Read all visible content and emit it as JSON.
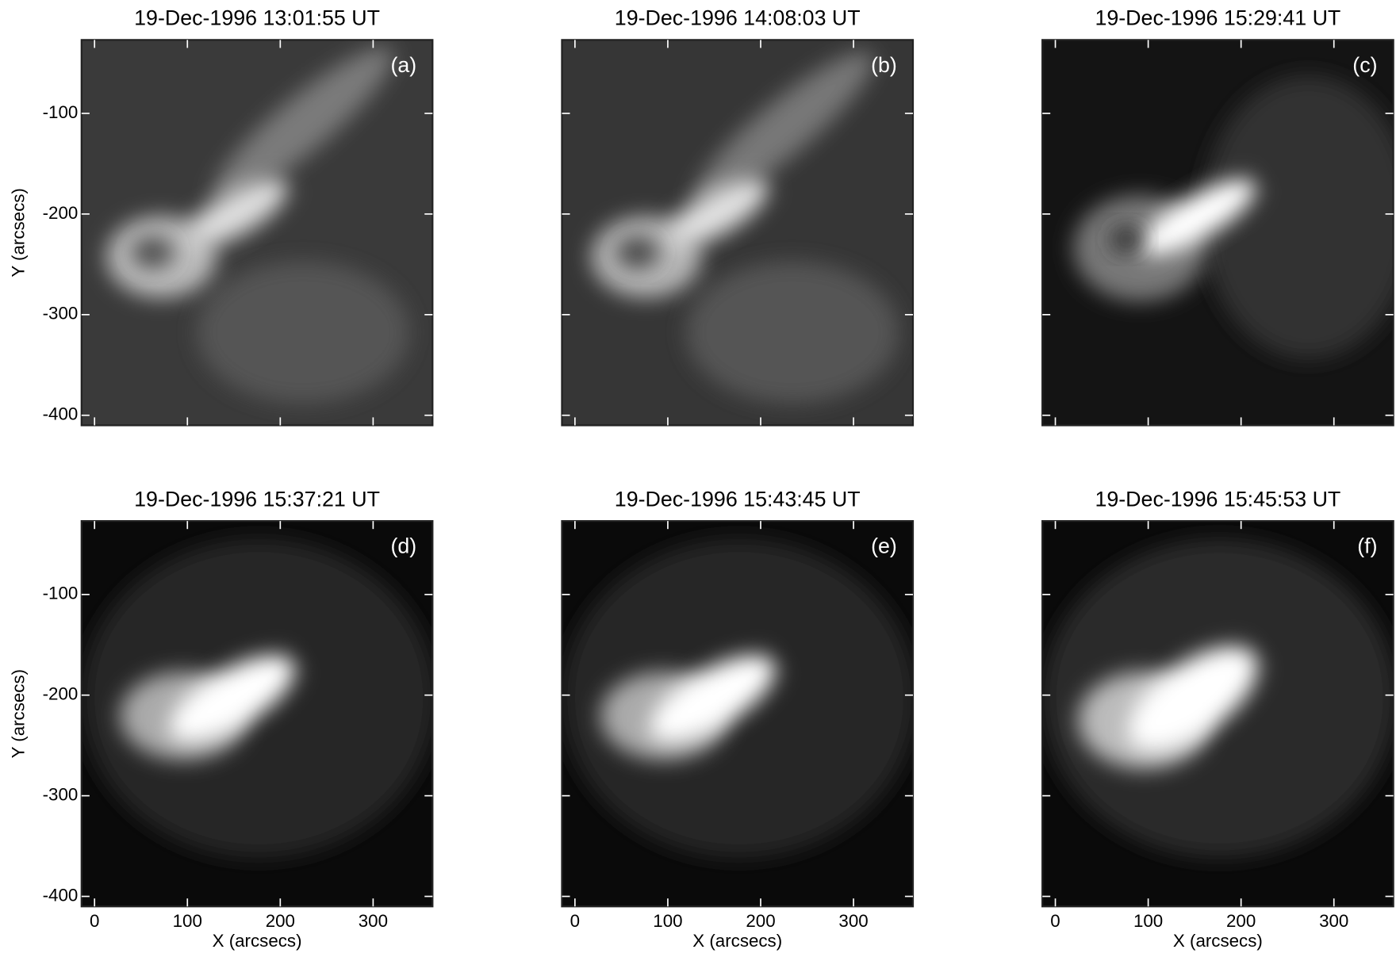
{
  "chart_data": [
    {
      "type": "image",
      "title": "19-Dec-1996 13:01:55 UT",
      "panel_label": "(a)",
      "xlim": [
        -14,
        364
      ],
      "ylim": [
        -410,
        -27
      ],
      "xticks": [
        0,
        100,
        200,
        300
      ],
      "yticks": [
        -100,
        -200,
        -300,
        -400
      ],
      "xtick_labels": false,
      "ytick_labels": true,
      "ylabel": "Y (arcsecs)"
    },
    {
      "type": "image",
      "title": "19-Dec-1996 14:08:03 UT",
      "panel_label": "(b)",
      "xlim": [
        -14,
        364
      ],
      "ylim": [
        -410,
        -27
      ],
      "xticks": [
        0,
        100,
        200,
        300
      ],
      "yticks": [
        -100,
        -200,
        -300,
        -400
      ],
      "xtick_labels": false,
      "ytick_labels": false
    },
    {
      "type": "image",
      "title": "19-Dec-1996 15:29:41 UT",
      "panel_label": "(c)",
      "xlim": [
        -14,
        364
      ],
      "ylim": [
        -410,
        -27
      ],
      "xticks": [
        0,
        100,
        200,
        300
      ],
      "yticks": [
        -100,
        -200,
        -300,
        -400
      ],
      "xtick_labels": false,
      "ytick_labels": false
    },
    {
      "type": "image",
      "title": "19-Dec-1996 15:37:21 UT",
      "panel_label": "(d)",
      "xlim": [
        -14,
        364
      ],
      "ylim": [
        -410,
        -27
      ],
      "xticks": [
        0,
        100,
        200,
        300
      ],
      "yticks": [
        -100,
        -200,
        -300,
        -400
      ],
      "xtick_labels": true,
      "ytick_labels": true,
      "xlabel": "X (arcsecs)",
      "ylabel": "Y (arcsecs)"
    },
    {
      "type": "image",
      "title": "19-Dec-1996 15:43:45 UT",
      "panel_label": "(e)",
      "xlim": [
        -14,
        364
      ],
      "ylim": [
        -410,
        -27
      ],
      "xticks": [
        0,
        100,
        200,
        300
      ],
      "yticks": [
        -100,
        -200,
        -300,
        -400
      ],
      "xtick_labels": true,
      "ytick_labels": false,
      "xlabel": "X (arcsecs)"
    },
    {
      "type": "image",
      "title": "19-Dec-1996 15:45:53 UT",
      "panel_label": "(f)",
      "xlim": [
        -14,
        364
      ],
      "ylim": [
        -410,
        -27
      ],
      "xticks": [
        0,
        100,
        200,
        300
      ],
      "yticks": [
        -100,
        -200,
        -300,
        -400
      ],
      "xtick_labels": true,
      "ytick_labels": false,
      "xlabel": "X (arcsecs)"
    }
  ]
}
